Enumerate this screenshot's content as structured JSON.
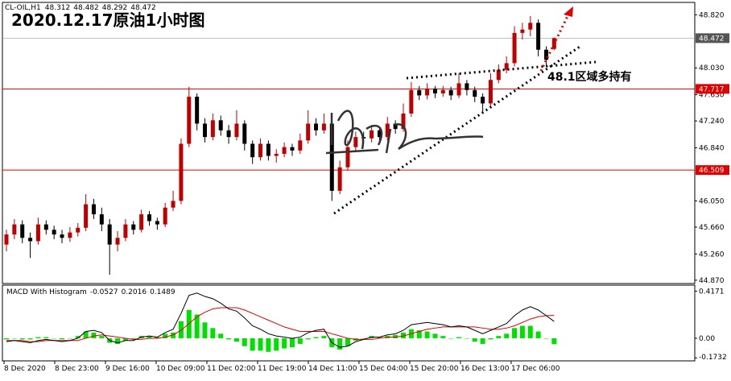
{
  "chart_data": [
    {
      "type": "candlestick",
      "title": "2020.12.17原油1小时图",
      "symbol": "CL-OIL,H1",
      "annotation": "48.1区域多持有",
      "up_color": "#c00000",
      "down_color": "#000000",
      "open": [
        45.4,
        45.55,
        45.7,
        45.5,
        45.45,
        45.7,
        45.62,
        45.55,
        45.5,
        45.58,
        45.65,
        46.0,
        45.85,
        45.7,
        45.4,
        45.5,
        45.7,
        45.62,
        45.85,
        45.75,
        45.7,
        45.95,
        46.05,
        46.9,
        47.6,
        47.2,
        47.0,
        47.25,
        47.1,
        47.0,
        47.2,
        46.9,
        46.7,
        46.9,
        46.72,
        46.75,
        46.85,
        46.8,
        46.95,
        47.2,
        47.1,
        47.2,
        46.2,
        46.55,
        46.85,
        47.0,
        46.98,
        47.1,
        47.0,
        47.2,
        47.12,
        47.35,
        47.7,
        47.62,
        47.72,
        47.65,
        47.7,
        47.62,
        47.8,
        47.7,
        47.6,
        47.5,
        47.85,
        48.0,
        48.1,
        48.55,
        48.6,
        48.7,
        48.3,
        48.312
      ],
      "high": [
        45.62,
        45.78,
        45.76,
        45.58,
        45.8,
        45.76,
        45.68,
        45.62,
        45.66,
        45.72,
        46.15,
        46.08,
        45.95,
        45.78,
        45.6,
        45.78,
        45.75,
        45.92,
        45.9,
        45.8,
        46.02,
        46.2,
        46.98,
        47.75,
        47.65,
        47.28,
        47.35,
        47.32,
        47.18,
        47.4,
        47.25,
        46.95,
        46.98,
        46.95,
        46.82,
        46.92,
        46.9,
        47.05,
        47.4,
        47.28,
        47.35,
        47.25,
        46.65,
        46.95,
        47.08,
        47.08,
        47.18,
        47.15,
        47.3,
        47.25,
        47.5,
        47.82,
        47.76,
        47.8,
        47.76,
        47.76,
        47.75,
        47.95,
        47.85,
        47.75,
        47.65,
        47.95,
        48.08,
        48.2,
        48.65,
        48.7,
        48.8,
        48.75,
        48.35,
        48.482
      ],
      "low": [
        45.3,
        45.48,
        45.42,
        45.2,
        45.4,
        45.55,
        45.48,
        45.42,
        45.44,
        45.52,
        45.6,
        45.78,
        45.6,
        44.95,
        45.3,
        45.45,
        45.55,
        45.58,
        45.68,
        45.62,
        45.66,
        45.9,
        46.0,
        46.85,
        47.1,
        46.92,
        46.95,
        47.02,
        46.9,
        46.95,
        46.8,
        46.6,
        46.65,
        46.65,
        46.62,
        46.7,
        46.72,
        46.75,
        46.9,
        47.02,
        47.05,
        46.05,
        46.15,
        46.5,
        46.8,
        46.9,
        46.92,
        46.92,
        46.95,
        47.05,
        47.08,
        47.3,
        47.55,
        47.56,
        47.58,
        47.6,
        47.55,
        47.58,
        47.62,
        47.52,
        47.35,
        47.45,
        47.8,
        47.95,
        48.05,
        48.45,
        48.5,
        48.2,
        48.05,
        48.292
      ],
      "close": [
        45.55,
        45.7,
        45.5,
        45.45,
        45.7,
        45.62,
        45.55,
        45.5,
        45.58,
        45.65,
        46.0,
        45.85,
        45.7,
        45.4,
        45.5,
        45.7,
        45.62,
        45.85,
        45.75,
        45.7,
        45.95,
        46.05,
        46.9,
        47.6,
        47.2,
        47.0,
        47.25,
        47.1,
        47.0,
        47.2,
        46.9,
        46.7,
        46.9,
        46.72,
        46.75,
        46.85,
        46.8,
        46.95,
        47.2,
        47.1,
        47.2,
        46.2,
        46.55,
        46.85,
        47.0,
        46.98,
        47.1,
        47.0,
        47.2,
        47.12,
        47.35,
        47.7,
        47.62,
        47.72,
        47.65,
        47.7,
        47.62,
        47.8,
        47.7,
        47.6,
        47.5,
        47.85,
        48.0,
        48.1,
        48.55,
        48.6,
        48.7,
        48.3,
        48.15,
        48.472
      ],
      "hlines": [
        47.717,
        46.509
      ],
      "hline_color": "#e00000",
      "price_line_color": "#808080",
      "ylim": [
        44.82,
        48.98
      ],
      "yticks": [
        {
          "value": 48.82,
          "label": "48.820"
        },
        {
          "value": 48.03,
          "label": "48.030"
        },
        {
          "value": 47.63,
          "label": "47.630"
        },
        {
          "value": 47.24,
          "label": "47.240"
        },
        {
          "value": 46.84,
          "label": "46.840"
        },
        {
          "value": 46.05,
          "label": "46.050"
        },
        {
          "value": 45.66,
          "label": "45.660"
        },
        {
          "value": 45.26,
          "label": "45.260"
        },
        {
          "value": 44.87,
          "label": "44.870"
        }
      ],
      "x_labels": [
        "8 Dec 2020",
        "8 Dec 23:00",
        "9 Dec 16:00",
        "10 Dec 09:00",
        "11 Dec 02:00",
        "11 Dec 19:00",
        "14 Dec 11:00",
        "15 Dec 04:00",
        "15 Dec 20:00",
        "16 Dec 13:00",
        "17 Dec 06:00"
      ]
    },
    {
      "type": "macd",
      "title": "MACD With Histogram",
      "hist_color": "#00e000",
      "macd_color": "#000000",
      "signal_color": "#e00000",
      "hist": [
        -0.01,
        0.0,
        -0.01,
        -0.01,
        0.01,
        0.01,
        0.0,
        -0.01,
        0.0,
        0.02,
        0.06,
        0.05,
        0.02,
        -0.04,
        -0.05,
        -0.02,
        -0.01,
        0.02,
        0.02,
        0.01,
        0.04,
        0.05,
        0.15,
        0.25,
        0.21,
        0.14,
        0.09,
        0.04,
        -0.01,
        -0.03,
        -0.07,
        -0.11,
        -0.11,
        -0.12,
        -0.11,
        -0.09,
        -0.08,
        -0.05,
        -0.01,
        0.01,
        0.02,
        -0.08,
        -0.1,
        -0.07,
        -0.02,
        0.0,
        0.02,
        0.01,
        0.02,
        0.03,
        0.05,
        0.08,
        0.07,
        0.06,
        0.04,
        0.02,
        0.0,
        0.01,
        0.0,
        -0.03,
        -0.05,
        -0.01,
        0.02,
        0.04,
        0.09,
        0.11,
        0.11,
        0.06,
        0.0,
        -0.0527
      ],
      "signal": [
        -0.02,
        -0.02,
        -0.02,
        -0.03,
        -0.03,
        -0.02,
        -0.02,
        -0.02,
        -0.02,
        -0.02,
        0.0,
        0.02,
        0.03,
        0.02,
        0.01,
        0.0,
        -0.01,
        -0.01,
        0.0,
        0.0,
        0.01,
        0.03,
        0.07,
        0.13,
        0.19,
        0.23,
        0.26,
        0.27,
        0.27,
        0.27,
        0.25,
        0.22,
        0.19,
        0.16,
        0.13,
        0.1,
        0.08,
        0.06,
        0.06,
        0.06,
        0.06,
        0.04,
        0.02,
        0.0,
        -0.01,
        -0.01,
        -0.01,
        0.0,
        0.01,
        0.01,
        0.02,
        0.04,
        0.06,
        0.08,
        0.09,
        0.1,
        0.1,
        0.1,
        0.1,
        0.1,
        0.09,
        0.08,
        0.08,
        0.09,
        0.11,
        0.14,
        0.17,
        0.19,
        0.2,
        0.2016
      ],
      "macd": [
        -0.03,
        -0.02,
        -0.03,
        -0.04,
        -0.02,
        -0.01,
        -0.02,
        -0.03,
        -0.02,
        0.0,
        0.06,
        0.07,
        0.05,
        -0.02,
        -0.04,
        -0.02,
        -0.02,
        0.01,
        0.02,
        0.01,
        0.05,
        0.08,
        0.22,
        0.38,
        0.4,
        0.37,
        0.35,
        0.31,
        0.26,
        0.24,
        0.18,
        0.11,
        0.08,
        0.04,
        0.02,
        0.01,
        0.0,
        0.01,
        0.05,
        0.07,
        0.08,
        -0.04,
        -0.08,
        -0.07,
        -0.03,
        -0.01,
        0.01,
        0.01,
        0.03,
        0.04,
        0.07,
        0.12,
        0.13,
        0.14,
        0.13,
        0.12,
        0.1,
        0.11,
        0.1,
        0.07,
        0.04,
        0.07,
        0.1,
        0.13,
        0.2,
        0.25,
        0.28,
        0.25,
        0.2,
        0.1489
      ],
      "ylim": [
        -0.2,
        0.47
      ],
      "yticks": [
        0.4171,
        {
          "value": 0,
          "label": "0.00"
        },
        -0.1732
      ]
    }
  ]
}
